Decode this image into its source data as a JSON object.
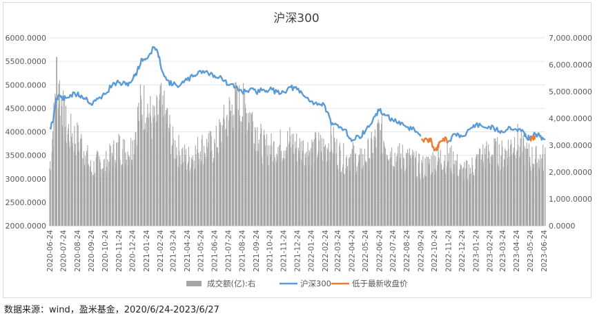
{
  "chart_data": {
    "type": "bar+line",
    "title": "沪深300",
    "source_note": "数据来源：wind，盈米基金，2020/6/24-2023/6/27",
    "y_left": {
      "ylim": [
        2000,
        6000
      ],
      "ticks": [
        "2000.0000",
        "2500.0000",
        "3000.0000",
        "3500.0000",
        "4000.0000",
        "4500.0000",
        "5000.0000",
        "5500.0000",
        "6000.0000"
      ]
    },
    "y_right": {
      "ylim": [
        0,
        7000
      ],
      "ticks": [
        "0.0000",
        "1,000.0000",
        "2,000.0000",
        "3,000.0000",
        "4,000.0000",
        "5,000.0000",
        "6,000.0000",
        "7,000.0000"
      ]
    },
    "x_ticks": [
      "2020-06-24",
      "2020-07-24",
      "2020-08-24",
      "2020-09-24",
      "2020-10-24",
      "2020-11-24",
      "2020-12-24",
      "2021-01-24",
      "2021-02-24",
      "2021-03-24",
      "2021-04-24",
      "2021-05-24",
      "2021-06-24",
      "2021-07-24",
      "2021-08-24",
      "2021-09-24",
      "2021-10-24",
      "2021-11-24",
      "2021-12-24",
      "2022-01-24",
      "2022-02-24",
      "2022-03-24",
      "2022-04-24",
      "2022-05-24",
      "2022-06-24",
      "2022-07-24",
      "2022-08-24",
      "2022-09-24",
      "2022-10-24",
      "2022-11-24",
      "2022-12-24",
      "2023-01-24",
      "2023-02-24",
      "2023-03-24",
      "2023-04-24",
      "2023-05-24",
      "2023-06-24"
    ],
    "legend": [
      {
        "name": "成交额(亿):右",
        "color": "#a6a6a6",
        "kind": "bar"
      },
      {
        "name": "沪深300",
        "color": "#5b9bd5",
        "kind": "line"
      },
      {
        "name": "低于最新收盘价",
        "color": "#ed7d31",
        "kind": "line"
      }
    ],
    "index_series": {
      "name": "沪深300",
      "color": "#5b9bd5",
      "points": [
        [
          "2020-06-24",
          4070
        ],
        [
          "2020-07-01",
          4200
        ],
        [
          "2020-07-08",
          4700
        ],
        [
          "2020-07-15",
          4780
        ],
        [
          "2020-07-24",
          4700
        ],
        [
          "2020-07-31",
          4720
        ],
        [
          "2020-08-10",
          4780
        ],
        [
          "2020-08-24",
          4800
        ],
        [
          "2020-09-04",
          4750
        ],
        [
          "2020-09-15",
          4700
        ],
        [
          "2020-09-24",
          4580
        ],
        [
          "2020-10-09",
          4700
        ],
        [
          "2020-10-24",
          4800
        ],
        [
          "2020-11-10",
          5000
        ],
        [
          "2020-11-24",
          5050
        ],
        [
          "2020-12-10",
          5000
        ],
        [
          "2020-12-24",
          5100
        ],
        [
          "2021-01-04",
          5300
        ],
        [
          "2021-01-15",
          5550
        ],
        [
          "2021-01-24",
          5550
        ],
        [
          "2021-02-10",
          5800
        ],
        [
          "2021-02-18",
          5700
        ],
        [
          "2021-02-24",
          5450
        ],
        [
          "2021-03-10",
          5100
        ],
        [
          "2021-03-24",
          5000
        ],
        [
          "2021-04-10",
          5000
        ],
        [
          "2021-04-24",
          5100
        ],
        [
          "2021-05-10",
          5200
        ],
        [
          "2021-05-24",
          5300
        ],
        [
          "2021-06-10",
          5250
        ],
        [
          "2021-06-24",
          5200
        ],
        [
          "2021-07-10",
          5150
        ],
        [
          "2021-07-24",
          5000
        ],
        [
          "2021-08-10",
          4950
        ],
        [
          "2021-08-24",
          4850
        ],
        [
          "2021-09-10",
          4900
        ],
        [
          "2021-09-24",
          4850
        ],
        [
          "2021-10-10",
          4900
        ],
        [
          "2021-10-24",
          4900
        ],
        [
          "2021-11-10",
          4850
        ],
        [
          "2021-11-24",
          4850
        ],
        [
          "2021-12-10",
          4950
        ],
        [
          "2021-12-24",
          4900
        ],
        [
          "2022-01-10",
          4750
        ],
        [
          "2022-01-24",
          4650
        ],
        [
          "2022-02-10",
          4600
        ],
        [
          "2022-02-24",
          4550
        ],
        [
          "2022-03-10",
          4150
        ],
        [
          "2022-03-24",
          4150
        ],
        [
          "2022-04-10",
          4050
        ],
        [
          "2022-04-24",
          3800
        ],
        [
          "2022-05-10",
          3900
        ],
        [
          "2022-05-24",
          4000
        ],
        [
          "2022-06-10",
          4250
        ],
        [
          "2022-06-24",
          4450
        ],
        [
          "2022-07-10",
          4350
        ],
        [
          "2022-07-24",
          4250
        ],
        [
          "2022-08-10",
          4150
        ],
        [
          "2022-08-24",
          4100
        ],
        [
          "2022-09-10",
          4050
        ],
        [
          "2022-09-24",
          3900
        ]
      ]
    },
    "below_close_series": {
      "name": "低于最新收盘价",
      "color": "#ed7d31",
      "points": [
        [
          "2022-09-26",
          3850
        ],
        [
          "2022-10-10",
          3800
        ],
        [
          "2022-10-17",
          3850
        ],
        [
          "2022-10-24",
          3600
        ],
        [
          "2022-10-31",
          3650
        ],
        [
          "2022-11-07",
          3800
        ],
        [
          "2022-11-14",
          3850
        ],
        [
          "2022-11-24",
          3800
        ]
      ]
    },
    "index_series_after": {
      "name": "沪深300",
      "color": "#5b9bd5",
      "points": [
        [
          "2022-11-24",
          3800
        ],
        [
          "2022-12-10",
          3950
        ],
        [
          "2022-12-24",
          3900
        ],
        [
          "2023-01-10",
          4050
        ],
        [
          "2023-01-24",
          4150
        ],
        [
          "2023-02-10",
          4100
        ],
        [
          "2023-02-24",
          4100
        ],
        [
          "2023-03-10",
          4050
        ],
        [
          "2023-03-24",
          4000
        ],
        [
          "2023-04-10",
          4100
        ],
        [
          "2023-04-24",
          4050
        ],
        [
          "2023-05-10",
          4000
        ],
        [
          "2023-05-15",
          3900
        ],
        [
          "2023-05-24",
          3850
        ],
        [
          "2023-06-05",
          3950
        ],
        [
          "2023-06-15",
          3900
        ],
        [
          "2023-06-27",
          3850
        ]
      ]
    },
    "below_close_tail": {
      "name": "低于最新收盘价",
      "color": "#ed7d31",
      "points": [
        [
          "2023-05-24",
          3860
        ],
        [
          "2023-05-31",
          3850
        ],
        [
          "2023-06-05",
          3900
        ]
      ]
    },
    "turnover_series": {
      "name": "成交额(亿):右",
      "color": "#a6a6a6",
      "points": [
        [
          "2020-06-24",
          2200
        ],
        [
          "2020-07-03",
          4000
        ],
        [
          "2020-07-10",
          6000
        ],
        [
          "2020-07-17",
          5000
        ],
        [
          "2020-07-24",
          4300
        ],
        [
          "2020-07-31",
          3700
        ],
        [
          "2020-08-10",
          3500
        ],
        [
          "2020-08-24",
          3300
        ],
        [
          "2020-09-04",
          3100
        ],
        [
          "2020-09-15",
          2600
        ],
        [
          "2020-09-24",
          2100
        ],
        [
          "2020-10-09",
          2400
        ],
        [
          "2020-10-24",
          2300
        ],
        [
          "2020-11-10",
          2700
        ],
        [
          "2020-11-24",
          3000
        ],
        [
          "2020-12-10",
          2800
        ],
        [
          "2020-12-24",
          3000
        ],
        [
          "2021-01-10",
          4500
        ],
        [
          "2021-01-24",
          4600
        ],
        [
          "2021-02-10",
          3800
        ],
        [
          "2021-02-18",
          4200
        ],
        [
          "2021-02-24",
          4500
        ],
        [
          "2021-03-10",
          4100
        ],
        [
          "2021-03-24",
          3100
        ],
        [
          "2021-04-10",
          2800
        ],
        [
          "2021-04-24",
          2500
        ],
        [
          "2021-05-10",
          2700
        ],
        [
          "2021-05-24",
          3000
        ],
        [
          "2021-06-10",
          3000
        ],
        [
          "2021-06-24",
          3000
        ],
        [
          "2021-07-10",
          3600
        ],
        [
          "2021-07-24",
          4200
        ],
        [
          "2021-08-10",
          4600
        ],
        [
          "2021-08-24",
          4500
        ],
        [
          "2021-09-10",
          4300
        ],
        [
          "2021-09-24",
          3700
        ],
        [
          "2021-10-10",
          3000
        ],
        [
          "2021-10-24",
          2900
        ],
        [
          "2021-11-10",
          3000
        ],
        [
          "2021-11-24",
          3100
        ],
        [
          "2021-12-10",
          3200
        ],
        [
          "2021-12-24",
          3000
        ],
        [
          "2022-01-10",
          2900
        ],
        [
          "2022-01-24",
          2900
        ],
        [
          "2022-02-10",
          3000
        ],
        [
          "2022-02-24",
          2900
        ],
        [
          "2022-03-10",
          3300
        ],
        [
          "2022-03-24",
          2800
        ],
        [
          "2022-04-10",
          2500
        ],
        [
          "2022-04-24",
          2700
        ],
        [
          "2022-05-10",
          2400
        ],
        [
          "2022-05-24",
          2600
        ],
        [
          "2022-06-10",
          3000
        ],
        [
          "2022-06-24",
          3600
        ],
        [
          "2022-07-10",
          3100
        ],
        [
          "2022-07-24",
          2700
        ],
        [
          "2022-08-10",
          2600
        ],
        [
          "2022-08-24",
          2600
        ],
        [
          "2022-09-10",
          2400
        ],
        [
          "2022-09-24",
          2200
        ],
        [
          "2022-10-10",
          2300
        ],
        [
          "2022-10-24",
          2500
        ],
        [
          "2022-11-10",
          2600
        ],
        [
          "2022-11-24",
          2600
        ],
        [
          "2022-12-10",
          2400
        ],
        [
          "2022-12-24",
          2000
        ],
        [
          "2023-01-10",
          2100
        ],
        [
          "2023-01-24",
          2400
        ],
        [
          "2023-02-10",
          2700
        ],
        [
          "2023-02-24",
          2700
        ],
        [
          "2023-03-10",
          2800
        ],
        [
          "2023-03-24",
          2700
        ],
        [
          "2023-04-10",
          3000
        ],
        [
          "2023-04-24",
          3300
        ],
        [
          "2023-05-10",
          2800
        ],
        [
          "2023-05-24",
          2600
        ],
        [
          "2023-06-10",
          2500
        ],
        [
          "2023-06-27",
          2600
        ]
      ]
    }
  }
}
